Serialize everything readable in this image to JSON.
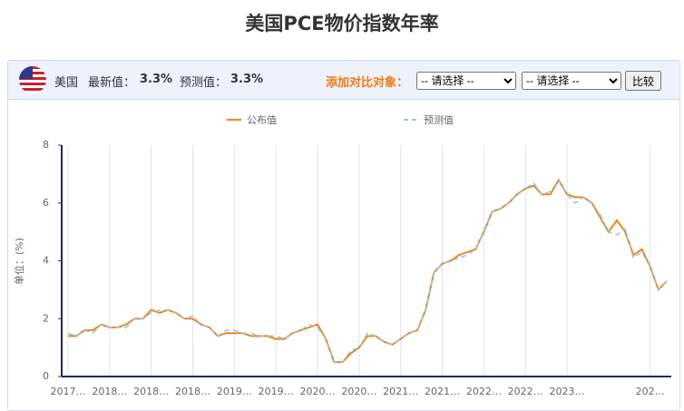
{
  "header": {
    "title": "美国PCE物价指数年率",
    "country": "美国",
    "latest_label": "最新值：",
    "latest_value": "3.3%",
    "forecast_label": "预测值：",
    "forecast_value": "3.3%",
    "compare_label": "添加对比对象：",
    "select_placeholder": "-- 请选择 --",
    "compare_button": "比较"
  },
  "chart_data": {
    "type": "line",
    "y_label": "单位：(%)",
    "categories": [
      "2017…",
      null,
      null,
      null,
      null,
      "2018…",
      null,
      null,
      null,
      null,
      "2018…",
      null,
      null,
      null,
      null,
      "2018…",
      null,
      null,
      null,
      null,
      "2019…",
      null,
      null,
      null,
      null,
      "2019…",
      null,
      null,
      null,
      null,
      "2020…",
      null,
      null,
      null,
      null,
      "2020…",
      null,
      null,
      null,
      null,
      "2021…",
      null,
      null,
      null,
      null,
      "2021…",
      null,
      null,
      null,
      null,
      "2022…",
      null,
      null,
      null,
      null,
      "2022…",
      null,
      null,
      null,
      null,
      "2023…",
      null,
      null,
      null,
      null,
      null,
      null,
      null,
      null,
      null,
      "202…",
      null,
      null
    ],
    "series": [
      {
        "name": "公布值",
        "color": "#f0861a",
        "dashed": false,
        "values": [
          1.4,
          1.4,
          1.6,
          1.6,
          1.8,
          1.7,
          1.7,
          1.8,
          2.0,
          2.0,
          2.3,
          2.2,
          2.3,
          2.2,
          2.0,
          2.0,
          1.8,
          1.7,
          1.4,
          1.5,
          1.5,
          1.5,
          1.4,
          1.4,
          1.4,
          1.3,
          1.3,
          1.5,
          1.6,
          1.7,
          1.8,
          1.3,
          0.5,
          0.5,
          0.8,
          1.0,
          1.4,
          1.4,
          1.2,
          1.1,
          1.3,
          1.5,
          1.6,
          2.3,
          3.6,
          3.9,
          4.0,
          4.2,
          4.3,
          4.4,
          5.0,
          5.7,
          5.8,
          6.0,
          6.3,
          6.5,
          6.6,
          6.3,
          6.3,
          6.8,
          6.3,
          6.2,
          6.2,
          6.0,
          5.5,
          5.0,
          5.4,
          5.0,
          4.2,
          4.4,
          3.8,
          3.0,
          3.3
        ]
      },
      {
        "name": "预测值",
        "color": "#8ecae6",
        "dashed": true,
        "values": [
          1.5,
          1.4,
          1.6,
          1.5,
          1.8,
          1.7,
          1.7,
          1.7,
          2.0,
          2.0,
          2.2,
          2.3,
          2.3,
          2.2,
          2.0,
          2.1,
          1.8,
          1.7,
          1.4,
          1.6,
          1.6,
          1.5,
          1.5,
          1.4,
          1.4,
          1.4,
          1.3,
          1.5,
          1.6,
          1.8,
          1.7,
          1.3,
          0.5,
          0.5,
          0.9,
          1.0,
          1.5,
          1.4,
          1.2,
          1.1,
          1.3,
          1.5,
          1.6,
          2.3,
          3.6,
          3.9,
          4.0,
          4.1,
          4.2,
          4.4,
          5.0,
          5.7,
          5.8,
          6.0,
          6.3,
          6.5,
          6.7,
          6.3,
          6.4,
          6.8,
          6.3,
          6.0,
          6.2,
          6.0,
          5.6,
          5.0,
          4.9,
          5.1,
          4.1,
          4.3,
          3.8,
          3.0,
          3.3
        ]
      }
    ],
    "ylim": [
      0,
      8
    ],
    "yticks": [
      0,
      2,
      4,
      6,
      8
    ],
    "grid": true
  }
}
